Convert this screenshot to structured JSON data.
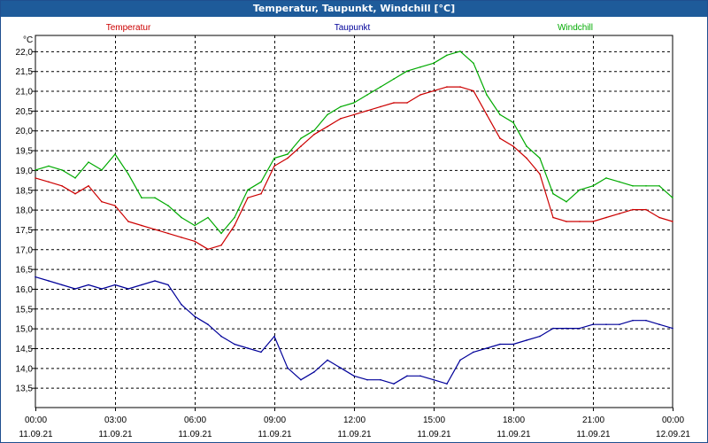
{
  "window": {
    "title": "Temperatur, Taupunkt, Windchill [°C]"
  },
  "chart_data": {
    "type": "line",
    "unit": "°C",
    "ylim": [
      13.0,
      22.4
    ],
    "yticks": [
      "13,5",
      "14,0",
      "14,5",
      "15,0",
      "15,5",
      "16,0",
      "16,5",
      "17,0",
      "17,5",
      "18,0",
      "18,5",
      "19,0",
      "19,5",
      "20,0",
      "20,5",
      "21,0",
      "21,5",
      "22,0"
    ],
    "xticks": [
      {
        "time": "00:00",
        "date": "11.09.21"
      },
      {
        "time": "03:00",
        "date": "11.09.21"
      },
      {
        "time": "06:00",
        "date": "11.09.21"
      },
      {
        "time": "09:00",
        "date": "11.09.21"
      },
      {
        "time": "12:00",
        "date": "11.09.21"
      },
      {
        "time": "15:00",
        "date": "11.09.21"
      },
      {
        "time": "18:00",
        "date": "11.09.21"
      },
      {
        "time": "21:00",
        "date": "11.09.21"
      },
      {
        "time": "00:00",
        "date": "12.09.21"
      }
    ],
    "x_hours": [
      0,
      0.5,
      1,
      1.5,
      2,
      2.5,
      3,
      3.5,
      4,
      4.5,
      5,
      5.5,
      6,
      6.5,
      7,
      7.5,
      8,
      8.5,
      9,
      9.5,
      10,
      10.5,
      11,
      11.5,
      12,
      12.5,
      13,
      13.5,
      14,
      14.5,
      15,
      15.5,
      16,
      16.5,
      17,
      17.5,
      18,
      18.5,
      19,
      19.5,
      20,
      20.5,
      21,
      21.5,
      22,
      22.5,
      23,
      23.5,
      24
    ],
    "grid": true,
    "legend": "top",
    "series": [
      {
        "name": "Temperatur",
        "color": "#cc0000",
        "values": [
          18.8,
          18.7,
          18.6,
          18.4,
          18.6,
          18.2,
          18.1,
          17.7,
          17.6,
          17.5,
          17.4,
          17.3,
          17.2,
          17.0,
          17.1,
          17.6,
          18.3,
          18.4,
          19.1,
          19.3,
          19.6,
          19.9,
          20.1,
          20.3,
          20.4,
          20.5,
          20.6,
          20.7,
          20.7,
          20.9,
          21.0,
          21.1,
          21.1,
          21.0,
          20.4,
          19.8,
          19.6,
          19.3,
          18.9,
          17.8,
          17.7,
          17.7,
          17.7,
          17.8,
          17.9,
          18.0,
          18.0,
          17.8,
          17.7
        ]
      },
      {
        "name": "Taupunkt",
        "color": "#000099",
        "values": [
          16.3,
          16.2,
          16.1,
          16.0,
          16.1,
          16.0,
          16.1,
          16.0,
          16.1,
          16.2,
          16.1,
          15.6,
          15.3,
          15.1,
          14.8,
          14.6,
          14.5,
          14.4,
          14.8,
          14.0,
          13.7,
          13.9,
          14.2,
          14.0,
          13.8,
          13.7,
          13.7,
          13.6,
          13.8,
          13.8,
          13.7,
          13.6,
          14.2,
          14.4,
          14.5,
          14.6,
          14.6,
          14.7,
          14.8,
          15.0,
          15.0,
          15.0,
          15.1,
          15.1,
          15.1,
          15.2,
          15.2,
          15.1,
          15.0
        ]
      },
      {
        "name": "Windchill",
        "color": "#00aa00",
        "values": [
          19.0,
          19.1,
          19.0,
          18.8,
          19.2,
          19.0,
          19.4,
          18.9,
          18.3,
          18.3,
          18.1,
          17.8,
          17.6,
          17.8,
          17.4,
          17.8,
          18.5,
          18.7,
          19.3,
          19.4,
          19.8,
          20.0,
          20.4,
          20.6,
          20.7,
          20.9,
          21.1,
          21.3,
          21.5,
          21.6,
          21.7,
          21.9,
          22.0,
          21.7,
          20.9,
          20.4,
          20.2,
          19.6,
          19.3,
          18.4,
          18.2,
          18.5,
          18.6,
          18.8,
          18.7,
          18.6,
          18.6,
          18.6,
          18.3
        ]
      }
    ]
  }
}
